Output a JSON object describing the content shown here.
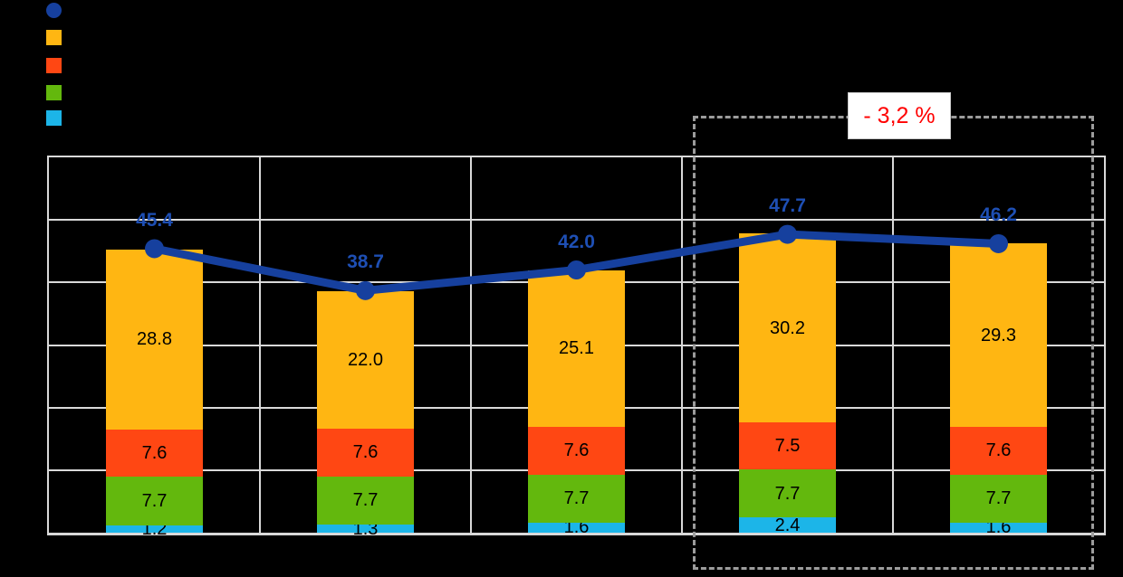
{
  "canvas": {
    "background": "#000000"
  },
  "legend": {
    "position": "top-left",
    "items": [
      {
        "name": "line-series-marker",
        "marker": "circle",
        "color": "#16409E"
      },
      {
        "name": "yellow-series-marker",
        "marker": "square",
        "color": "#FFB612"
      },
      {
        "name": "orange-series-marker",
        "marker": "square",
        "color": "#FF4713"
      },
      {
        "name": "green-series-marker",
        "marker": "square",
        "color": "#63B80D"
      },
      {
        "name": "cyan-series-marker",
        "marker": "square",
        "color": "#1CB5E8"
      }
    ]
  },
  "annotation": {
    "label": "- 3,2 %",
    "text_color": "#FF0000",
    "box_color": "#FFFFFF",
    "highlight_border_color": "#9C9C9C"
  },
  "chart_data": {
    "type": "bar",
    "subtype": "stacked-bars-with-line-overlay",
    "n_groups": 5,
    "bar_series": [
      {
        "name": "cyan-segment",
        "color": "#1CB5E8",
        "values": [
          1.2,
          1.3,
          1.6,
          2.4,
          1.6
        ]
      },
      {
        "name": "green-segment",
        "color": "#63B80D",
        "values": [
          7.7,
          7.7,
          7.7,
          7.7,
          7.7
        ]
      },
      {
        "name": "orange-segment",
        "color": "#FF4713",
        "values": [
          7.6,
          7.6,
          7.6,
          7.5,
          7.6
        ]
      },
      {
        "name": "yellow-segment",
        "color": "#FFB612",
        "values": [
          28.8,
          22.0,
          25.1,
          30.2,
          29.3
        ]
      }
    ],
    "line_series": {
      "name": "total-line",
      "color": "#16409E",
      "value_label_color": "#1E4FB4",
      "values": [
        45.4,
        38.7,
        42.0,
        47.7,
        46.2
      ]
    },
    "stacked_totals": [
      45.3,
      38.6,
      42.0,
      47.8,
      46.2
    ],
    "ylim": [
      0,
      60
    ],
    "y_gridline_step": 10,
    "grid": true,
    "gridline_color": "#D9D9D9",
    "highlighted_groups": [
      3,
      4
    ],
    "value_label_color": "#000000"
  }
}
